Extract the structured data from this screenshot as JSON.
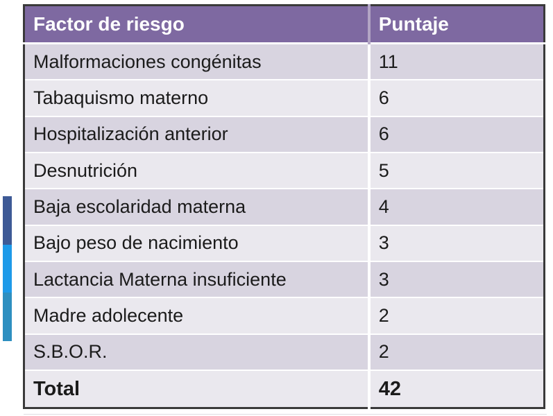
{
  "colors": {
    "canvas_bg": "#ffffff",
    "header_bg": "#7e69a1",
    "header_text": "#ffffff",
    "header_divider": "#b2a5c4",
    "row_odd_bg": "#d8d4e0",
    "row_even_bg": "#eae8ee",
    "row_divider": "#ffffff",
    "table_border": "#3a3a3a",
    "body_text": "#1b1b1b",
    "accent_top": "#3e5a96",
    "accent_middle": "#1d9ae9",
    "accent_bottom": "#2e8fc0"
  },
  "table": {
    "columns": [
      "Factor de riesgo",
      "Puntaje"
    ],
    "rows": [
      {
        "factor": "Malformaciones congénitas",
        "puntaje": "11"
      },
      {
        "factor": "Tabaquismo materno",
        "puntaje": "6"
      },
      {
        "factor": "Hospitalización anterior",
        "puntaje": "6"
      },
      {
        "factor": "Desnutrición",
        "puntaje": "5"
      },
      {
        "factor": "Baja escolaridad materna",
        "puntaje": "4"
      },
      {
        "factor": "Bajo peso de nacimiento",
        "puntaje": "3"
      },
      {
        "factor": "Lactancia Materna insuficiente",
        "puntaje": "3"
      },
      {
        "factor": "Madre adolecente",
        "puntaje": "2"
      },
      {
        "factor": "S.B.O.R.",
        "puntaje": "2"
      }
    ],
    "total": {
      "label": "Total",
      "value": "42"
    }
  },
  "chart_data": {
    "type": "table",
    "title": "",
    "columns": [
      "Factor de riesgo",
      "Puntaje"
    ],
    "categories": [
      "Malformaciones congénitas",
      "Tabaquismo materno",
      "Hospitalización anterior",
      "Desnutrición",
      "Baja escolaridad materna",
      "Bajo peso de nacimiento",
      "Lactancia Materna insuficiente",
      "Madre adolecente",
      "S.B.O.R."
    ],
    "values": [
      11,
      6,
      6,
      5,
      4,
      3,
      3,
      2,
      2
    ],
    "total_label": "Total",
    "total_value": 42
  }
}
